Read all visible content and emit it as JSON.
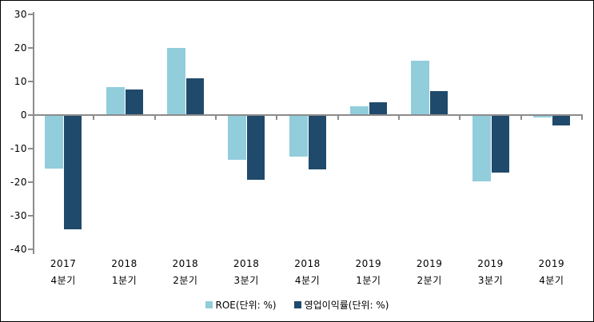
{
  "chart_data": {
    "type": "bar",
    "title": "",
    "xlabel": "",
    "ylabel": "",
    "categories": [
      {
        "year": "2017",
        "quarter": "4분기"
      },
      {
        "year": "2018",
        "quarter": "1분기"
      },
      {
        "year": "2018",
        "quarter": "2분기"
      },
      {
        "year": "2018",
        "quarter": "3분기"
      },
      {
        "year": "2018",
        "quarter": "4분기"
      },
      {
        "year": "2019",
        "quarter": "1분기"
      },
      {
        "year": "2019",
        "quarter": "2분기"
      },
      {
        "year": "2019",
        "quarter": "3분기"
      },
      {
        "year": "2019",
        "quarter": "4분기"
      }
    ],
    "series": [
      {
        "name": "ROE(단위: %)",
        "color": "#92CDDC",
        "values": [
          -16,
          8.3,
          19.9,
          -13.5,
          -12.4,
          2.5,
          16.1,
          -19.8,
          -0.7
        ]
      },
      {
        "name": "영업이익률(단위: %)",
        "color": "#204A6B",
        "values": [
          -34.2,
          7.5,
          10.9,
          -19.3,
          -16.2,
          3.6,
          7.1,
          -17.3,
          -3.1
        ]
      }
    ],
    "ylim": [
      -40,
      30
    ],
    "yticks": [
      30,
      20,
      10,
      0,
      -10,
      -20,
      -30,
      -40
    ],
    "ytick_step": 10,
    "grid": false,
    "legend_position": "bottom",
    "axis_color": "#8C8C8C"
  }
}
